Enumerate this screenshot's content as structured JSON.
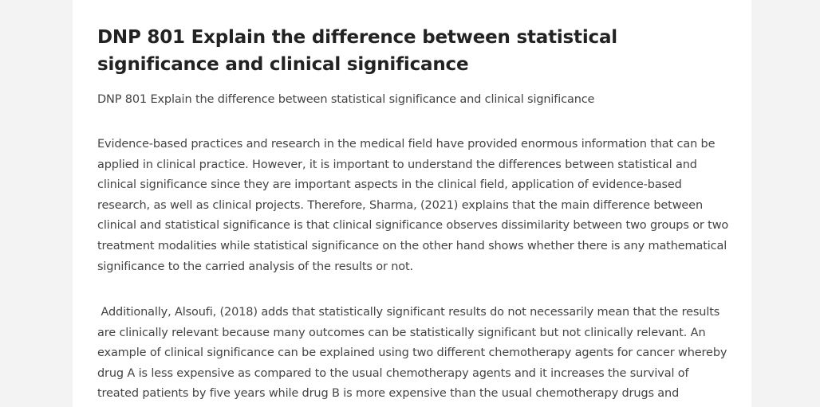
{
  "article": {
    "title": "DNP 801 Explain the difference between statistical significance and clinical significance",
    "subtitle": "DNP 801 Explain the difference between statistical significance and clinical significance",
    "paragraphs": [
      "Evidence-based practices and research in the medical field have provided enormous information that can be applied in clinical practice. However, it is important to understand the differences between statistical and clinical significance since they are important aspects in the clinical field, application of evidence-based research, as well as clinical projects. Therefore, Sharma, (2021) explains that the main difference between clinical and statistical significance is that clinical significance observes dissimilarity between two groups or two treatment modalities while statistical significance on the other hand shows whether there is any mathematical significance to the carried analysis of the results or not.",
      " Additionally, Alsoufi, (2018) adds that statistically significant results do not necessarily mean that the results are clinically relevant because many outcomes can be statistically significant but not clinically relevant. An example of clinical significance can be explained using two different chemotherapy agents for cancer whereby drug A is less expensive as compared to the usual chemotherapy agents and it increases the survival of treated patients by five years while drug B is more expensive than the usual chemotherapy drugs and increases the survival of"
    ]
  }
}
